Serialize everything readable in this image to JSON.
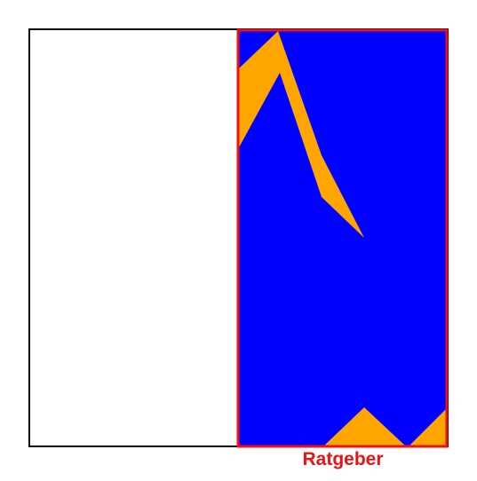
{
  "figure": {
    "highlight_label": "Ratgeber",
    "colors": {
      "background": "#ffffff",
      "outer_frame": "#000000",
      "panel_fill": "#0000ff",
      "shape_fill": "#ffa500",
      "highlight": "#ee1111"
    }
  }
}
